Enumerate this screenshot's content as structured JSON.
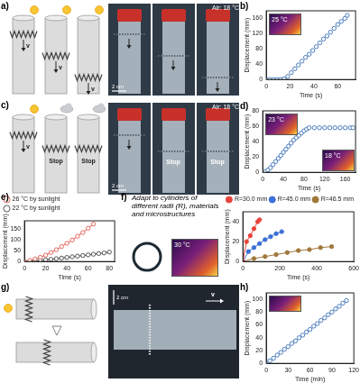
{
  "illustrations": [
    {
      "label": "a)",
      "air_label": "Air: 18 °C",
      "scale_label": "2 cm",
      "velocity_label": "v"
    },
    {
      "label": "c)",
      "air_label": "Air: 18 °C",
      "scale_label": "2 cm",
      "velocity_label": "v",
      "stop_label": "Stop"
    },
    {
      "label": "g)",
      "scale_label": "2 cm",
      "velocity_label": "v"
    }
  ],
  "chart_data": [
    {
      "panel_label": "b)",
      "type": "scatter",
      "x_label": "Time (s)",
      "y_label": "Displacement (mm)",
      "x": [
        0,
        3,
        6,
        9,
        12,
        15,
        18,
        21,
        24,
        27,
        30,
        33,
        36,
        39,
        42,
        45,
        48,
        51,
        54,
        57,
        60,
        63,
        66,
        68
      ],
      "values": [
        0,
        0,
        0,
        0,
        0,
        2,
        8,
        18,
        28,
        38,
        48,
        58,
        66,
        76,
        86,
        96,
        106,
        114,
        124,
        134,
        144,
        152,
        160,
        168
      ],
      "color": "#3a6fb5",
      "marker": "circle_open",
      "xlim": [
        0,
        75
      ],
      "xticks": [
        0,
        20,
        40,
        60
      ],
      "ylim": [
        0,
        180
      ],
      "yticks": [
        0,
        40,
        80,
        120,
        160
      ],
      "grid": false,
      "annotations": [
        "25 °C"
      ]
    },
    {
      "panel_label": "d)",
      "type": "scatter",
      "x_label": "Time (s)",
      "y_label": "Displacement (mm)",
      "x": [
        0,
        5,
        10,
        15,
        20,
        25,
        30,
        35,
        40,
        45,
        50,
        55,
        60,
        65,
        70,
        75,
        80,
        85,
        90,
        100,
        110,
        120,
        130,
        140,
        150,
        160,
        170,
        175
      ],
      "values": [
        0,
        1,
        3,
        6,
        10,
        14,
        18,
        22,
        26,
        30,
        34,
        38,
        42,
        45,
        48,
        51,
        54,
        56,
        58,
        58,
        58,
        58,
        58,
        58,
        58,
        58,
        58,
        58
      ],
      "color": "#3a6fb5",
      "marker": "circle_open",
      "xlim": [
        0,
        180
      ],
      "xticks": [
        0,
        40,
        80,
        120,
        160
      ],
      "ylim": [
        0,
        80
      ],
      "yticks": [
        0,
        20,
        40,
        60,
        80
      ],
      "grid": false,
      "annotations": [
        "23 °C",
        "18 °C"
      ]
    },
    {
      "panel_label": "e)",
      "type": "line",
      "x_label": "Time (s)",
      "y_label": "Displacement (mm)",
      "series": [
        {
          "name": "26 °C by sunlight",
          "color": "#e05a4f",
          "marker": "circle_open",
          "x": [
            0,
            5,
            10,
            15,
            20,
            25,
            30,
            35,
            40,
            45,
            50,
            55,
            60,
            65
          ],
          "values": [
            0,
            5,
            12,
            20,
            30,
            42,
            55,
            70,
            85,
            100,
            118,
            135,
            155,
            175
          ]
        },
        {
          "name": "22 °C by sunlight",
          "color": "#444444",
          "marker": "circle_open",
          "x": [
            0,
            5,
            10,
            15,
            20,
            25,
            30,
            35,
            40,
            45,
            50,
            55,
            60,
            65,
            70,
            75,
            80
          ],
          "values": [
            0,
            1,
            3,
            5,
            8,
            10,
            13,
            16,
            19,
            22,
            25,
            28,
            31,
            34,
            37,
            40,
            44
          ]
        }
      ],
      "xlim": [
        0,
        85
      ],
      "xticks": [
        0,
        20,
        40,
        60,
        80
      ],
      "ylim": [
        0,
        190
      ],
      "yticks": [
        0,
        50,
        100,
        150
      ],
      "grid": false,
      "legend": "top-left"
    },
    {
      "panel_label": "f)",
      "type": "line",
      "x_label": "Time (s)",
      "y_label": "Displacement (mm)",
      "series": [
        {
          "name": "R=30.0 mm",
          "color": "#e8433a",
          "marker": "circle",
          "x": [
            0,
            20,
            40,
            60,
            80,
            90
          ],
          "values": [
            0,
            20,
            26,
            33,
            40,
            42
          ]
        },
        {
          "name": "R=45.0 mm",
          "color": "#3b6fd6",
          "marker": "circle",
          "x": [
            0,
            30,
            60,
            90,
            120,
            150,
            180,
            210
          ],
          "values": [
            0,
            10,
            14,
            18,
            22,
            25,
            28,
            30
          ]
        },
        {
          "name": "R=46.5 mm",
          "color": "#a0783c",
          "marker": "circle",
          "x": [
            0,
            60,
            120,
            180,
            240,
            300,
            360,
            420,
            480
          ],
          "values": [
            0,
            3,
            5,
            7,
            9,
            11,
            12,
            14,
            15
          ]
        }
      ],
      "xlim": [
        0,
        600
      ],
      "xticks": [
        0,
        200,
        400,
        600
      ],
      "ylim": [
        0,
        50
      ],
      "yticks": [
        0,
        20,
        40
      ],
      "grid": false,
      "legend": "top-right",
      "annotations": [
        "Adapt to cylinders of different radii (R), materials and microstructures",
        "30 °C"
      ]
    },
    {
      "panel_label": "h)",
      "type": "scatter",
      "x_label": "Time (min)",
      "y_label": "Displacement (mm)",
      "x": [
        0,
        5,
        10,
        15,
        20,
        25,
        30,
        35,
        40,
        45,
        50,
        55,
        60,
        65,
        70,
        75,
        80,
        85,
        90,
        95,
        100,
        105,
        110
      ],
      "values": [
        0,
        4,
        8,
        13,
        17,
        22,
        26,
        31,
        35,
        40,
        44,
        49,
        53,
        58,
        62,
        67,
        71,
        76,
        80,
        85,
        89,
        94,
        98
      ],
      "color": "#3a6fb5",
      "marker": "circle_open",
      "xlim": [
        0,
        120
      ],
      "xticks": [
        0,
        30,
        60,
        90,
        120
      ],
      "ylim": [
        0,
        110
      ],
      "yticks": [
        0,
        20,
        40,
        60,
        80,
        100
      ],
      "grid": false
    }
  ]
}
